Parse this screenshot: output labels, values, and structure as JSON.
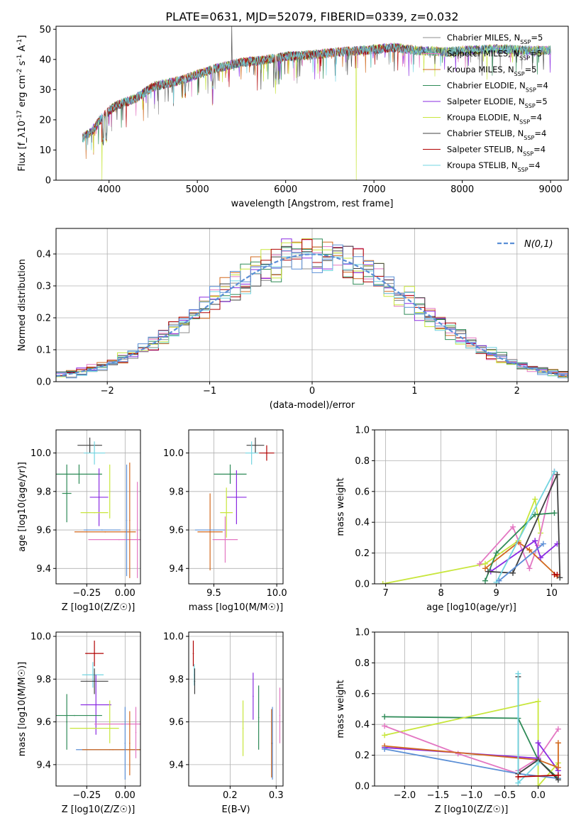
{
  "figure": {
    "title": "PLATE=0631, MJD=52079, FIBERID=0339, z=0.032"
  },
  "colors": {
    "chabrier_miles": "#8c8c8c",
    "salpeter_miles": "#e377c2",
    "kroupa_miles": "#d2691e",
    "chabrier_elodie": "#2e8b57",
    "salpeter_elodie": "#8a2be2",
    "kroupa_elodie": "#c8e63c",
    "chabrier_stelib": "#404040",
    "salpeter_stelib": "#b00000",
    "kroupa_stelib": "#72d4e0",
    "normal_curve": "#5b8fd6"
  },
  "chart_data": [
    {
      "id": "spectrum",
      "type": "line",
      "xlabel": "wavelength [Angstrom, rest frame]",
      "ylabel": "Flux [f_λ10^-17 erg cm^-2 s^-1 A^-1]",
      "xlim": [
        3400,
        9200
      ],
      "ylim": [
        0,
        51
      ],
      "xticks": [
        4000,
        5000,
        6000,
        7000,
        8000,
        9000
      ],
      "yticks": [
        0,
        10,
        20,
        30,
        40,
        50
      ],
      "legend_position": "top-right",
      "series": [
        {
          "name": "Chabrier MILES, N_SSP=5",
          "color_key": "chabrier_miles"
        },
        {
          "name": "Salpeter MILES, N_SSP=5",
          "color_key": "salpeter_miles"
        },
        {
          "name": "Kroupa MILES, N_SSP=5",
          "color_key": "kroupa_miles"
        },
        {
          "name": "Chabrier ELODIE, N_SSP=4",
          "color_key": "chabrier_elodie"
        },
        {
          "name": "Salpeter ELODIE, N_SSP=5",
          "color_key": "salpeter_elodie"
        },
        {
          "name": "Kroupa ELODIE, N_SSP=4",
          "color_key": "kroupa_elodie"
        },
        {
          "name": "Chabrier STELIB, N_SSP=4",
          "color_key": "chabrier_stelib"
        },
        {
          "name": "Salpeter STELIB, N_SSP=4",
          "color_key": "salpeter_stelib"
        },
        {
          "name": "Kroupa STELIB, N_SSP=4",
          "color_key": "kroupa_stelib"
        }
      ],
      "continuum": {
        "x": [
          3700,
          3800,
          3900,
          4000,
          4100,
          4300,
          4500,
          4800,
          5000,
          5200,
          5500,
          5800,
          6000,
          6300,
          6600,
          6900,
          7200,
          7500,
          7800,
          8100,
          8400,
          8700,
          9000
        ],
        "y": [
          14,
          16,
          20,
          23,
          25,
          27,
          31,
          33,
          35,
          37,
          39,
          40,
          41,
          41.5,
          42.5,
          43,
          44,
          43,
          42.5,
          43,
          43.5,
          43,
          43
        ]
      },
      "start_wavelength": 3700,
      "end_wavelength": 9000,
      "lines": {
        "stelib_spike_up": 5390,
        "kroupa_elodie_drop_up": 3920,
        "kroupa_elodie_drop_down": 6800,
        "salpeter_stelib_drop": 7430
      }
    },
    {
      "id": "residuals",
      "type": "step",
      "xlabel": "(data-model)/error",
      "ylabel": "Normed distribution",
      "xlim": [
        -2.5,
        2.5
      ],
      "ylim": [
        0,
        0.48
      ],
      "xticks": [
        -2,
        -1,
        0,
        1,
        2
      ],
      "yticks": [
        0.0,
        0.1,
        0.2,
        0.3,
        0.4
      ],
      "legend_position": "top-right",
      "legend": "N(0,1)",
      "bin_width": 0.1,
      "bins_from": -2.5
    },
    {
      "id": "age_vs_Z",
      "type": "errorbar",
      "xlabel": "Z [log10(Z/Z☉)]",
      "ylabel": "age [log10(age/yr)]",
      "xlim": [
        -0.45,
        0.1
      ],
      "ylim": [
        9.32,
        10.12
      ],
      "xticks": [
        -0.25,
        0.0
      ],
      "yticks": [
        9.4,
        9.6,
        9.8,
        10.0
      ],
      "points": [
        {
          "color_key": "chabrier_stelib",
          "x": -0.23,
          "xerr": 0.08,
          "y": 10.04,
          "yerr": 0.04
        },
        {
          "color_key": "kroupa_stelib",
          "x": -0.2,
          "xerr": 0.07,
          "y": 10.0,
          "yerr": 0.06
        },
        {
          "color_key": "chabrier_elodie",
          "x": -0.3,
          "xerr": 0.15,
          "y": 9.89,
          "yerr": 0.05
        },
        {
          "color_key": "chabrier_elodie",
          "x": -0.38,
          "xerr": 0.03,
          "y": 9.79,
          "yerr": 0.15
        },
        {
          "color_key": "salpeter_elodie",
          "x": -0.17,
          "xerr": 0.06,
          "y": 9.77,
          "yerr": 0.15
        },
        {
          "color_key": "kroupa_elodie",
          "x": -0.2,
          "xerr": 0.09,
          "y": 9.69,
          "yerr": 0.0
        },
        {
          "color_key": "kroupa_elodie",
          "x": -0.1,
          "xerr": 0.0,
          "y": 9.8,
          "yerr": 0.14
        },
        {
          "color_key": "kroupa_miles",
          "x": -0.13,
          "xerr": 0.2,
          "y": 9.59,
          "yerr": 0.0
        },
        {
          "color_key": "normal_curve",
          "x": -0.15,
          "xerr": 0.12,
          "y": 9.6,
          "yerr": 0.0
        },
        {
          "color_key": "salpeter_miles",
          "x": -0.04,
          "xerr": 0.2,
          "y": 9.55,
          "yerr": 0.0
        },
        {
          "color_key": "normal_curve",
          "x": 0.01,
          "xerr": 0.0,
          "y": 9.65,
          "yerr": 0.29
        },
        {
          "color_key": "kroupa_miles",
          "x": 0.03,
          "xerr": 0.0,
          "y": 9.65,
          "yerr": 0.3
        },
        {
          "color_key": "salpeter_miles",
          "x": 0.08,
          "xerr": 0.0,
          "y": 9.6,
          "yerr": 0.25
        }
      ]
    },
    {
      "id": "age_vs_mass",
      "type": "errorbar",
      "xlabel": "mass [log10(M/M☉)]",
      "ylabel": "",
      "xlim": [
        9.3,
        10.05
      ],
      "ylim": [
        9.32,
        10.12
      ],
      "xticks": [
        9.5,
        10.0
      ],
      "yticks": [
        9.4,
        9.6,
        9.8,
        10.0
      ],
      "points": [
        {
          "color_key": "chabrier_stelib",
          "x": 9.83,
          "xerr": 0.07,
          "y": 10.04,
          "yerr": 0.04
        },
        {
          "color_key": "salpeter_stelib",
          "x": 9.92,
          "xerr": 0.06,
          "y": 10.0,
          "yerr": 0.04
        },
        {
          "color_key": "kroupa_stelib",
          "x": 9.8,
          "xerr": 0.05,
          "y": 10.0,
          "yerr": 0.06
        },
        {
          "color_key": "chabrier_elodie",
          "x": 9.63,
          "xerr": 0.13,
          "y": 9.89,
          "yerr": 0.05
        },
        {
          "color_key": "salpeter_elodie",
          "x": 9.68,
          "xerr": 0.08,
          "y": 9.77,
          "yerr": 0.14
        },
        {
          "color_key": "kroupa_elodie",
          "x": 9.6,
          "xerr": 0.05,
          "y": 9.69,
          "yerr": 0.13
        },
        {
          "color_key": "kroupa_miles",
          "x": 9.47,
          "xerr": 0.1,
          "y": 9.59,
          "yerr": 0.2
        },
        {
          "color_key": "normal_curve",
          "x": 9.47,
          "xerr": 0.12,
          "y": 9.6,
          "yerr": 0.0
        },
        {
          "color_key": "salpeter_miles",
          "x": 9.59,
          "xerr": 0.1,
          "y": 9.55,
          "yerr": 0.12
        }
      ]
    },
    {
      "id": "weight_vs_age",
      "type": "line",
      "xlabel": "age [log10(age/yr)]",
      "ylabel": "mass weight",
      "xlim": [
        6.8,
        10.3
      ],
      "ylim": [
        0,
        1.0
      ],
      "xticks": [
        7,
        8,
        9,
        10
      ],
      "yticks": [
        0.0,
        0.2,
        0.4,
        0.6,
        0.8,
        1.0
      ],
      "series": [
        {
          "color_key": "kroupa_elodie",
          "x": [
            6.95,
            8.8,
            9.4,
            9.7,
            9.8
          ],
          "y": [
            0.0,
            0.13,
            0.28,
            0.55,
            0.33
          ]
        },
        {
          "color_key": "salpeter_miles",
          "x": [
            8.7,
            9.3,
            9.6,
            9.75,
            10.05
          ],
          "y": [
            0.13,
            0.37,
            0.1,
            0.25,
            0.73
          ]
        },
        {
          "color_key": "kroupa_miles",
          "x": [
            8.8,
            9.4,
            9.6,
            10.1
          ],
          "y": [
            0.1,
            0.27,
            0.22,
            0.05
          ]
        },
        {
          "color_key": "salpeter_elodie",
          "x": [
            8.9,
            9.7,
            9.8,
            10.1
          ],
          "y": [
            0.08,
            0.28,
            0.17,
            0.26
          ]
        },
        {
          "color_key": "chabrier_elodie",
          "x": [
            8.8,
            9.0,
            9.7,
            10.05
          ],
          "y": [
            0.02,
            0.2,
            0.45,
            0.46
          ]
        },
        {
          "color_key": "chabrier_stelib",
          "x": [
            8.85,
            9.3,
            10.1,
            10.15
          ],
          "y": [
            0.08,
            0.07,
            0.71,
            0.04
          ]
        },
        {
          "color_key": "kroupa_stelib",
          "x": [
            9.0,
            10.05
          ],
          "y": [
            0.01,
            0.73
          ]
        },
        {
          "color_key": "normal_curve",
          "x": [
            9.05,
            9.85
          ],
          "y": [
            0.02,
            0.26
          ]
        },
        {
          "color_key": "salpeter_stelib",
          "x": [
            10.05,
            10.1
          ],
          "y": [
            0.06,
            0.06
          ]
        }
      ]
    },
    {
      "id": "mass_vs_Z",
      "type": "errorbar",
      "xlabel": "Z [log10(Z/Z☉)]",
      "ylabel": "mass [log10(M/M☉)]",
      "xlim": [
        -0.45,
        0.1
      ],
      "ylim": [
        9.3,
        10.02
      ],
      "xticks": [
        -0.25,
        0.0
      ],
      "yticks": [
        9.4,
        9.6,
        9.8,
        10.0
      ],
      "points": [
        {
          "color_key": "salpeter_stelib",
          "x": -0.2,
          "xerr": 0.06,
          "y": 9.92,
          "yerr": 0.06
        },
        {
          "color_key": "kroupa_stelib",
          "x": -0.21,
          "xerr": 0.07,
          "y": 9.82,
          "yerr": 0.06
        },
        {
          "color_key": "chabrier_stelib",
          "x": -0.2,
          "xerr": 0.09,
          "y": 9.79,
          "yerr": 0.06
        },
        {
          "color_key": "salpeter_elodie",
          "x": -0.19,
          "xerr": 0.1,
          "y": 9.68,
          "yerr": 0.14
        },
        {
          "color_key": "kroupa_elodie",
          "x": -0.2,
          "xerr": 0.16,
          "y": 9.57,
          "yerr": 0.0
        },
        {
          "color_key": "kroupa_elodie",
          "x": -0.1,
          "xerr": 0.0,
          "y": 9.6,
          "yerr": 0.1
        },
        {
          "color_key": "chabrier_elodie",
          "x": -0.33,
          "xerr": 0.18,
          "y": 9.63,
          "yerr": 0.0
        },
        {
          "color_key": "chabrier_elodie",
          "x": -0.38,
          "xerr": 0.0,
          "y": 9.6,
          "yerr": 0.13
        },
        {
          "color_key": "salpeter_miles",
          "x": -0.02,
          "xerr": 0.18,
          "y": 9.59,
          "yerr": 0.0
        },
        {
          "color_key": "normal_curve",
          "x": -0.1,
          "xerr": 0.22,
          "y": 9.47,
          "yerr": 0.0
        },
        {
          "color_key": "kroupa_miles",
          "x": -0.08,
          "xerr": 0.2,
          "y": 9.47,
          "yerr": 0.0
        },
        {
          "color_key": "normal_curve",
          "x": 0.0,
          "xerr": 0.0,
          "y": 9.5,
          "yerr": 0.17
        },
        {
          "color_key": "kroupa_miles",
          "x": 0.03,
          "xerr": 0.0,
          "y": 9.5,
          "yerr": 0.15
        },
        {
          "color_key": "salpeter_miles",
          "x": 0.07,
          "xerr": 0.0,
          "y": 9.55,
          "yerr": 0.12
        }
      ]
    },
    {
      "id": "mass_vs_EBV",
      "type": "errorbar",
      "xlabel": "E(B-V)",
      "ylabel": "",
      "xlim": [
        0.11,
        0.315
      ],
      "ylim": [
        9.3,
        10.02
      ],
      "xticks": [
        0.2,
        0.3
      ],
      "yticks": [
        9.4,
        9.6,
        9.8,
        10.0
      ],
      "points": [
        {
          "color_key": "salpeter_stelib",
          "x": 0.12,
          "xerr": 0.0,
          "y": 9.92,
          "yerr": 0.06
        },
        {
          "color_key": "kroupa_stelib",
          "x": 0.122,
          "xerr": 0.0,
          "y": 9.82,
          "yerr": 0.05
        },
        {
          "color_key": "chabrier_stelib",
          "x": 0.123,
          "xerr": 0.0,
          "y": 9.79,
          "yerr": 0.06
        },
        {
          "color_key": "kroupa_elodie",
          "x": 0.228,
          "xerr": 0.0,
          "y": 9.57,
          "yerr": 0.13
        },
        {
          "color_key": "salpeter_elodie",
          "x": 0.25,
          "xerr": 0.0,
          "y": 9.72,
          "yerr": 0.11
        },
        {
          "color_key": "chabrier_elodie",
          "x": 0.262,
          "xerr": 0.0,
          "y": 9.62,
          "yerr": 0.15
        },
        {
          "color_key": "kroupa_miles",
          "x": 0.29,
          "xerr": 0.0,
          "y": 9.5,
          "yerr": 0.16
        },
        {
          "color_key": "normal_curve",
          "x": 0.292,
          "xerr": 0.0,
          "y": 9.5,
          "yerr": 0.17
        },
        {
          "color_key": "salpeter_miles",
          "x": 0.308,
          "xerr": 0.0,
          "y": 9.63,
          "yerr": 0.13
        }
      ]
    },
    {
      "id": "weight_vs_Z",
      "type": "line",
      "xlabel": "Z [log10(Z/Z☉)]",
      "ylabel": "mass weight",
      "xlim": [
        -2.45,
        0.45
      ],
      "ylim": [
        0,
        1.0
      ],
      "xticks": [
        -2.0,
        -1.5,
        -1.0,
        -0.5,
        0.0
      ],
      "yticks": [
        0.0,
        0.2,
        0.4,
        0.6,
        0.8,
        1.0
      ],
      "series": [
        {
          "color_key": "chabrier_elodie",
          "x": [
            -2.3,
            -0.3,
            0.0,
            0.3
          ],
          "y": [
            0.45,
            0.44,
            0.17,
            0.05
          ]
        },
        {
          "color_key": "kroupa_elodie",
          "x": [
            -2.3,
            0.0,
            0.0,
            0.3
          ],
          "y": [
            0.33,
            0.55,
            0.0,
            0.15
          ]
        },
        {
          "color_key": "salpeter_miles",
          "x": [
            -2.3,
            -1.2,
            -0.3,
            -0.3,
            0.0,
            0.3
          ],
          "y": [
            0.39,
            0.21,
            0.08,
            0.1,
            0.18,
            0.37
          ]
        },
        {
          "color_key": "salpeter_elodie",
          "x": [
            -2.3,
            0.0,
            0.0,
            0.3
          ],
          "y": [
            0.25,
            0.18,
            0.28,
            0.1
          ]
        },
        {
          "color_key": "kroupa_miles",
          "x": [
            -2.3,
            0.0,
            0.3,
            0.3
          ],
          "y": [
            0.26,
            0.17,
            0.12,
            0.28
          ]
        },
        {
          "color_key": "normal_curve",
          "x": [
            -2.3,
            -0.3,
            0.3
          ],
          "y": [
            0.24,
            0.08,
            0.05
          ]
        },
        {
          "color_key": "chabrier_stelib",
          "x": [
            -0.3,
            -0.3,
            0.0,
            0.3
          ],
          "y": [
            0.71,
            0.08,
            0.17,
            0.04
          ]
        },
        {
          "color_key": "kroupa_stelib",
          "x": [
            -0.3,
            -0.3,
            0.0
          ],
          "y": [
            0.73,
            0.02,
            0.15
          ]
        },
        {
          "color_key": "salpeter_stelib",
          "x": [
            -0.3,
            0.3
          ],
          "y": [
            0.06,
            0.07
          ]
        }
      ]
    }
  ]
}
